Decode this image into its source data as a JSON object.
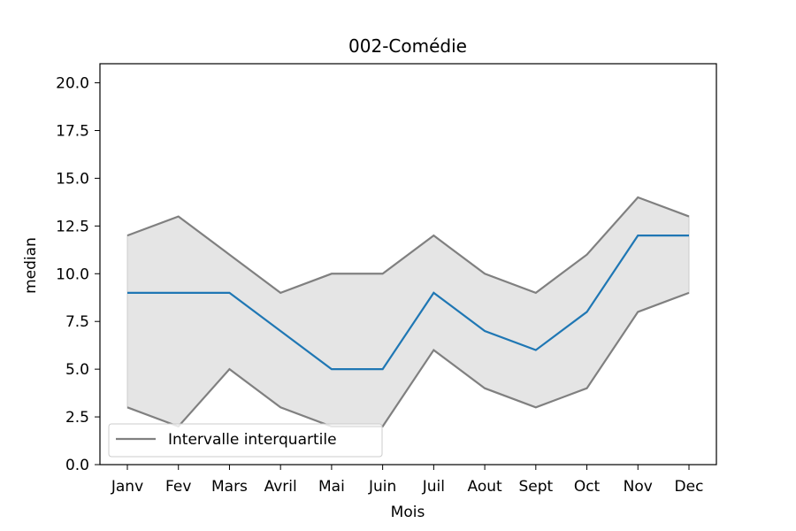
{
  "chart_data": {
    "type": "line",
    "title": "002-Comédie",
    "xlabel": "Mois",
    "ylabel": "median",
    "categories": [
      "Janv",
      "Fev",
      "Mars",
      "Avril",
      "Mai",
      "Juin",
      "Juil",
      "Aout",
      "Sept",
      "Oct",
      "Nov",
      "Dec"
    ],
    "ylim": [
      0,
      21
    ],
    "yticks": [
      "0.0",
      "2.5",
      "5.0",
      "7.5",
      "10.0",
      "12.5",
      "15.0",
      "17.5",
      "20.0"
    ],
    "series": [
      {
        "values": [
          9,
          9,
          9,
          7,
          5,
          5,
          9,
          7,
          6,
          8,
          12,
          12
        ],
        "color": "#1f77b4"
      }
    ],
    "band": {
      "name": "Intervalle interquartile",
      "color": "#808080",
      "fill": "#e5e5e5",
      "lower": [
        3,
        2,
        5,
        3,
        2,
        2,
        6,
        4,
        3,
        4,
        8,
        9
      ],
      "upper": [
        12,
        13,
        11,
        9,
        10,
        10,
        12,
        10,
        9,
        11,
        14,
        13
      ]
    },
    "legend": {
      "position": "lower-left",
      "entries": [
        "Intervalle interquartile"
      ]
    },
    "grid": false
  }
}
